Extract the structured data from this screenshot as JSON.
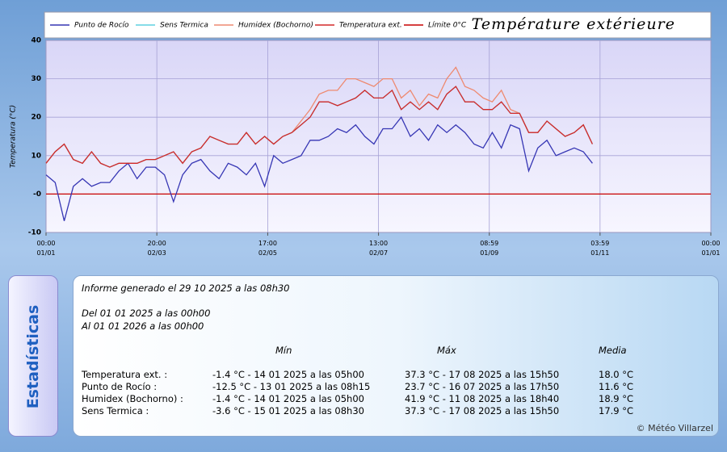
{
  "chart_data": {
    "type": "line",
    "title": "Température extérieure",
    "ylabel": "Temperatura (°C)",
    "xlim": [
      0,
      365
    ],
    "ylim": [
      -10,
      40
    ],
    "xticks": [
      {
        "value": 0,
        "label": "00:00\n01/01"
      },
      {
        "value": 60.83,
        "label": "20:00\n02/03"
      },
      {
        "value": 121.71,
        "label": "17:00\n02/05"
      },
      {
        "value": 182.54,
        "label": "13:00\n02/07"
      },
      {
        "value": 243.37,
        "label": "08:59\n01/09"
      },
      {
        "value": 304.17,
        "label": "03:59\n01/11"
      },
      {
        "value": 365,
        "label": "00:00\n01/01"
      }
    ],
    "yticks": [
      40,
      30,
      20,
      10,
      {
        "value": 0,
        "label": "-0"
      },
      -10
    ],
    "grid": true,
    "x": [
      0,
      5,
      10,
      15,
      20,
      25,
      30,
      35,
      40,
      45,
      50,
      55,
      60,
      65,
      70,
      75,
      80,
      85,
      90,
      95,
      100,
      105,
      110,
      115,
      120,
      125,
      130,
      135,
      140,
      145,
      150,
      155,
      160,
      165,
      170,
      175,
      180,
      185,
      190,
      195,
      200,
      205,
      210,
      215,
      220,
      225,
      230,
      235,
      240,
      245,
      250,
      255,
      260,
      265,
      270,
      275,
      280,
      285,
      290,
      295,
      300
    ],
    "series": [
      {
        "name": "Punto de Rocío",
        "color": "#3636b4",
        "values": [
          5,
          3,
          -7,
          2,
          4,
          2,
          3,
          3,
          6,
          8,
          4,
          7,
          7,
          5,
          -2,
          5,
          8,
          9,
          6,
          4,
          8,
          7,
          5,
          8,
          2,
          10,
          8,
          9,
          10,
          14,
          14,
          15,
          17,
          16,
          18,
          15,
          13,
          17,
          17,
          20,
          15,
          17,
          14,
          18,
          16,
          18,
          16,
          13,
          12,
          16,
          12,
          18,
          17,
          6,
          12,
          14,
          10,
          11,
          12,
          11,
          8
        ]
      },
      {
        "name": "Sens Termica",
        "color": "#5fd0e0",
        "values": [
          8,
          11,
          13,
          9,
          8,
          11,
          8,
          7,
          8,
          8,
          8,
          9,
          9,
          10,
          11,
          8,
          11,
          12,
          15,
          14,
          13,
          13,
          16,
          13,
          15,
          13,
          15,
          16,
          18,
          20,
          24,
          24,
          23,
          24,
          25,
          27,
          25,
          25,
          27,
          22,
          24,
          22,
          24,
          22,
          26,
          28,
          24,
          24,
          22,
          22,
          24,
          21,
          21,
          16,
          16,
          19,
          17,
          15,
          16,
          18,
          13
        ]
      },
      {
        "name": "Humidex (Bochorno)",
        "color": "#ee8a70",
        "values": [
          8,
          11,
          13,
          9,
          8,
          11,
          8,
          7,
          8,
          8,
          8,
          9,
          9,
          10,
          11,
          8,
          11,
          12,
          15,
          14,
          13,
          13,
          16,
          13,
          15,
          13,
          15,
          16,
          19,
          22,
          26,
          27,
          27,
          30,
          30,
          29,
          28,
          30,
          30,
          25,
          27,
          23,
          26,
          25,
          30,
          33,
          28,
          27,
          25,
          24,
          27,
          22,
          21,
          16,
          16,
          19,
          17,
          15,
          16,
          18,
          13
        ]
      },
      {
        "name": "Temperatura ext.",
        "color": "#d42828",
        "values": [
          8,
          11,
          13,
          9,
          8,
          11,
          8,
          7,
          8,
          8,
          8,
          9,
          9,
          10,
          11,
          8,
          11,
          12,
          15,
          14,
          13,
          13,
          16,
          13,
          15,
          13,
          15,
          16,
          18,
          20,
          24,
          24,
          23,
          24,
          25,
          27,
          25,
          25,
          27,
          22,
          24,
          22,
          24,
          22,
          26,
          28,
          24,
          24,
          22,
          22,
          24,
          21,
          21,
          16,
          16,
          19,
          17,
          15,
          16,
          18,
          13
        ]
      },
      {
        "name": "Límite 0°C",
        "color": "#c80000",
        "x": [
          0,
          365
        ],
        "values": [
          0,
          0
        ]
      }
    ]
  },
  "stats": {
    "title": "Estadísticas",
    "report": "Informe generado el 29 10 2025 a las 08h30",
    "from": "Del 01 01 2025 a las 00h00",
    "to": "Al 01 01 2026 a las 00h00",
    "headers": [
      "Mín",
      "Máx",
      "Media"
    ],
    "rows": [
      [
        "Temperatura ext. :",
        "-1.4 °C - 14 01 2025 a las 05h00",
        "37.3 °C - 17 08 2025 a las 15h50",
        "18.0 °C"
      ],
      [
        "Punto de Rocío :",
        "-12.5 °C - 13 01 2025 a las 08h15",
        "23.7 °C - 16 07 2025 a las 17h50",
        "11.6 °C"
      ],
      [
        "Humidex (Bochorno) :",
        "-1.4 °C - 14 01 2025 a las 05h00",
        "41.9 °C - 11 08 2025 a las 18h40",
        "18.9 °C"
      ],
      [
        "Sens Termica :",
        "-3.6 °C - 15 01 2025 a las 08h30",
        "37.3 °C - 17 08 2025 a las 15h50",
        "17.9 °C"
      ]
    ],
    "credit": "© Météo Villarzel"
  }
}
